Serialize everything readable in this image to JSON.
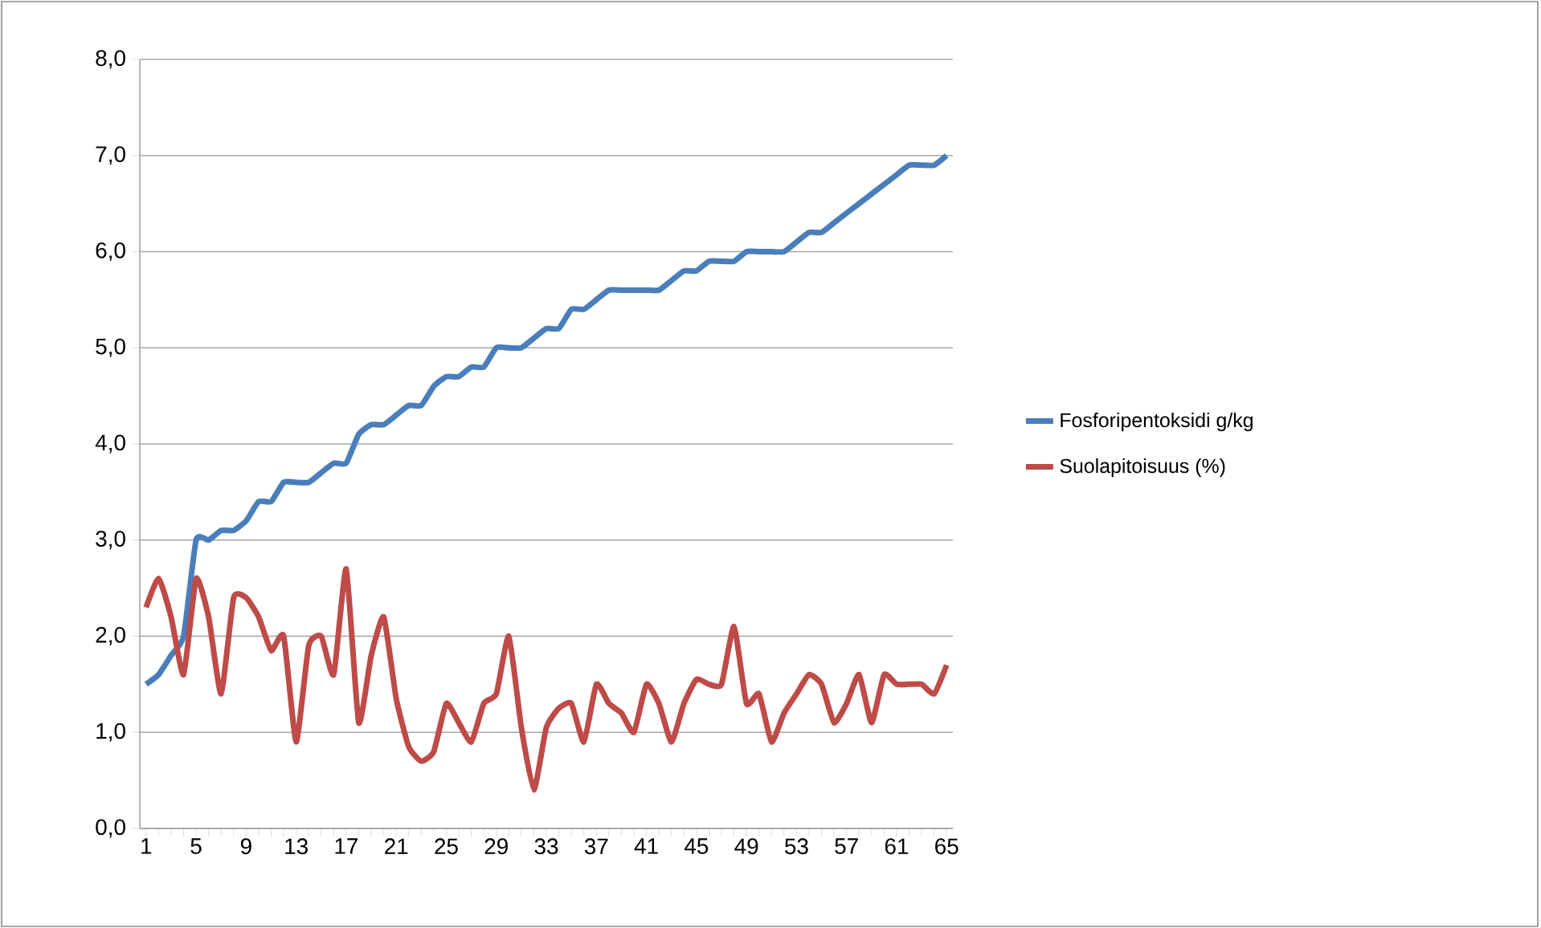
{
  "chart_data": {
    "type": "line",
    "categories": [
      "1",
      null,
      null,
      null,
      "5",
      null,
      null,
      null,
      "9",
      null,
      null,
      null,
      "13",
      null,
      null,
      null,
      "17",
      null,
      null,
      null,
      "21",
      null,
      null,
      null,
      "25",
      null,
      null,
      null,
      "29",
      null,
      null,
      null,
      "33",
      null,
      null,
      null,
      "37",
      null,
      null,
      null,
      "41",
      null,
      null,
      null,
      "45",
      null,
      null,
      null,
      "49",
      null,
      null,
      null,
      "53",
      null,
      null,
      null,
      "57",
      null,
      null,
      null,
      "61",
      null,
      null,
      null,
      "65"
    ],
    "series": [
      {
        "name": "Fosforipentoksidi g/kg",
        "color": "#4a7ebb",
        "values": [
          1.5,
          1.6,
          1.8,
          2.0,
          3.0,
          3.0,
          3.1,
          3.1,
          3.2,
          3.4,
          3.4,
          3.6,
          3.6,
          3.6,
          3.7,
          3.8,
          3.8,
          4.1,
          4.2,
          4.2,
          4.3,
          4.4,
          4.4,
          4.6,
          4.7,
          4.7,
          4.8,
          4.8,
          5.0,
          5.0,
          5.0,
          5.1,
          5.2,
          5.2,
          5.4,
          5.4,
          5.5,
          5.6,
          5.6,
          5.6,
          5.6,
          5.6,
          5.7,
          5.8,
          5.8,
          5.9,
          5.9,
          5.9,
          6.0,
          6.0,
          6.0,
          6.0,
          6.1,
          6.2,
          6.2,
          6.3,
          6.4,
          6.5,
          6.6,
          6.7,
          6.8,
          6.9,
          6.9,
          6.9,
          7.0
        ]
      },
      {
        "name": "Suolapitoisuus (%)",
        "color": "#be4b48",
        "values": [
          2.3,
          2.6,
          2.2,
          1.6,
          2.6,
          2.2,
          1.4,
          2.4,
          2.4,
          2.2,
          1.85,
          2.0,
          0.9,
          1.9,
          2.0,
          1.6,
          2.7,
          1.1,
          1.8,
          2.2,
          1.35,
          0.85,
          0.7,
          0.8,
          1.3,
          1.1,
          0.9,
          1.3,
          1.4,
          2.0,
          1.05,
          0.4,
          1.05,
          1.25,
          1.3,
          0.9,
          1.5,
          1.3,
          1.2,
          1.0,
          1.5,
          1.3,
          0.9,
          1.3,
          1.55,
          1.5,
          1.5,
          2.1,
          1.3,
          1.4,
          0.9,
          1.2,
          1.4,
          1.6,
          1.5,
          1.1,
          1.3,
          1.6,
          1.1,
          1.6,
          1.5,
          1.5,
          1.5,
          1.4,
          1.7
        ]
      }
    ],
    "ylim": [
      0,
      8
    ],
    "yticks": [
      {
        "value": 0,
        "label": "0,0"
      },
      {
        "value": 1,
        "label": "1,0"
      },
      {
        "value": 2,
        "label": "2,0"
      },
      {
        "value": 3,
        "label": "3,0"
      },
      {
        "value": 4,
        "label": "4,0"
      },
      {
        "value": 5,
        "label": "5,0"
      },
      {
        "value": 6,
        "label": "6,0"
      },
      {
        "value": 7,
        "label": "7,0"
      },
      {
        "value": 8,
        "label": "8,0"
      }
    ],
    "grid": "y",
    "legend": "right",
    "marker": "none",
    "line_style": "solid"
  }
}
